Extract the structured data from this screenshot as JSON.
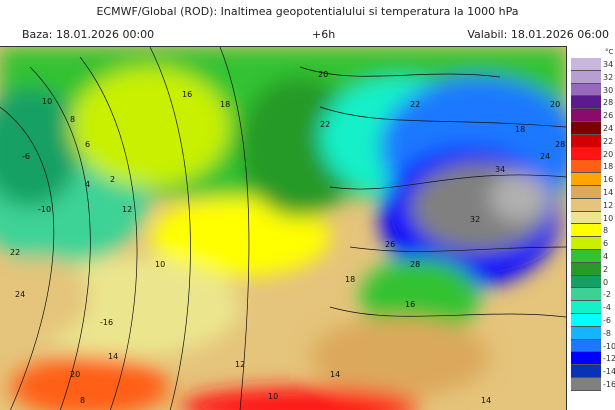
{
  "header": {
    "title": "ECMWF/Global (ROD): Inaltimea geopotentialului si temperatura la 1000 hPa",
    "base": "Baza: 18.01.2026 00:00",
    "step": "+6h",
    "valid": "Valabil: 18.01.2026 06:00"
  },
  "legend": {
    "unit": "°C",
    "items": [
      {
        "label": "34",
        "color": "#c9b6dd"
      },
      {
        "label": "32",
        "color": "#b89fd2"
      },
      {
        "label": "30",
        "color": "#9868bd"
      },
      {
        "label": "28",
        "color": "#5b1a8e"
      },
      {
        "label": "26",
        "color": "#8a0b6b"
      },
      {
        "label": "24",
        "color": "#7d0000"
      },
      {
        "label": "22",
        "color": "#d20000"
      },
      {
        "label": "20",
        "color": "#ff1414"
      },
      {
        "label": "18",
        "color": "#ff5f14"
      },
      {
        "label": "16",
        "color": "#ffa500"
      },
      {
        "label": "14",
        "color": "#dba95c"
      },
      {
        "label": "12",
        "color": "#e5c47b"
      },
      {
        "label": "10",
        "color": "#ebe68e"
      },
      {
        "label": "8",
        "color": "#ffff00"
      },
      {
        "label": "6",
        "color": "#c8f000"
      },
      {
        "label": "4",
        "color": "#32c232"
      },
      {
        "label": "2",
        "color": "#289a28"
      },
      {
        "label": "0",
        "color": "#14a064"
      },
      {
        "label": "-2",
        "color": "#3cd296"
      },
      {
        "label": "-4",
        "color": "#14f0c8"
      },
      {
        "label": "-6",
        "color": "#00ffff"
      },
      {
        "label": "-8",
        "color": "#14b4ff"
      },
      {
        "label": "-10",
        "color": "#1e78ff"
      },
      {
        "label": "-12",
        "color": "#0000ff"
      },
      {
        "label": "-14",
        "color": "#0a32b4"
      },
      {
        "label": "-16",
        "color": "#808080"
      }
    ]
  },
  "contour_labels": [
    "10",
    "8",
    "6",
    "4",
    "2",
    "-6",
    "-10",
    "22",
    "24",
    "-16",
    "14",
    "20",
    "16",
    "12",
    "10",
    "18",
    "20",
    "22",
    "22",
    "20",
    "18",
    "24",
    "28",
    "34",
    "32",
    "26",
    "28",
    "18",
    "16",
    "14",
    "12",
    "10",
    "8",
    "14"
  ]
}
